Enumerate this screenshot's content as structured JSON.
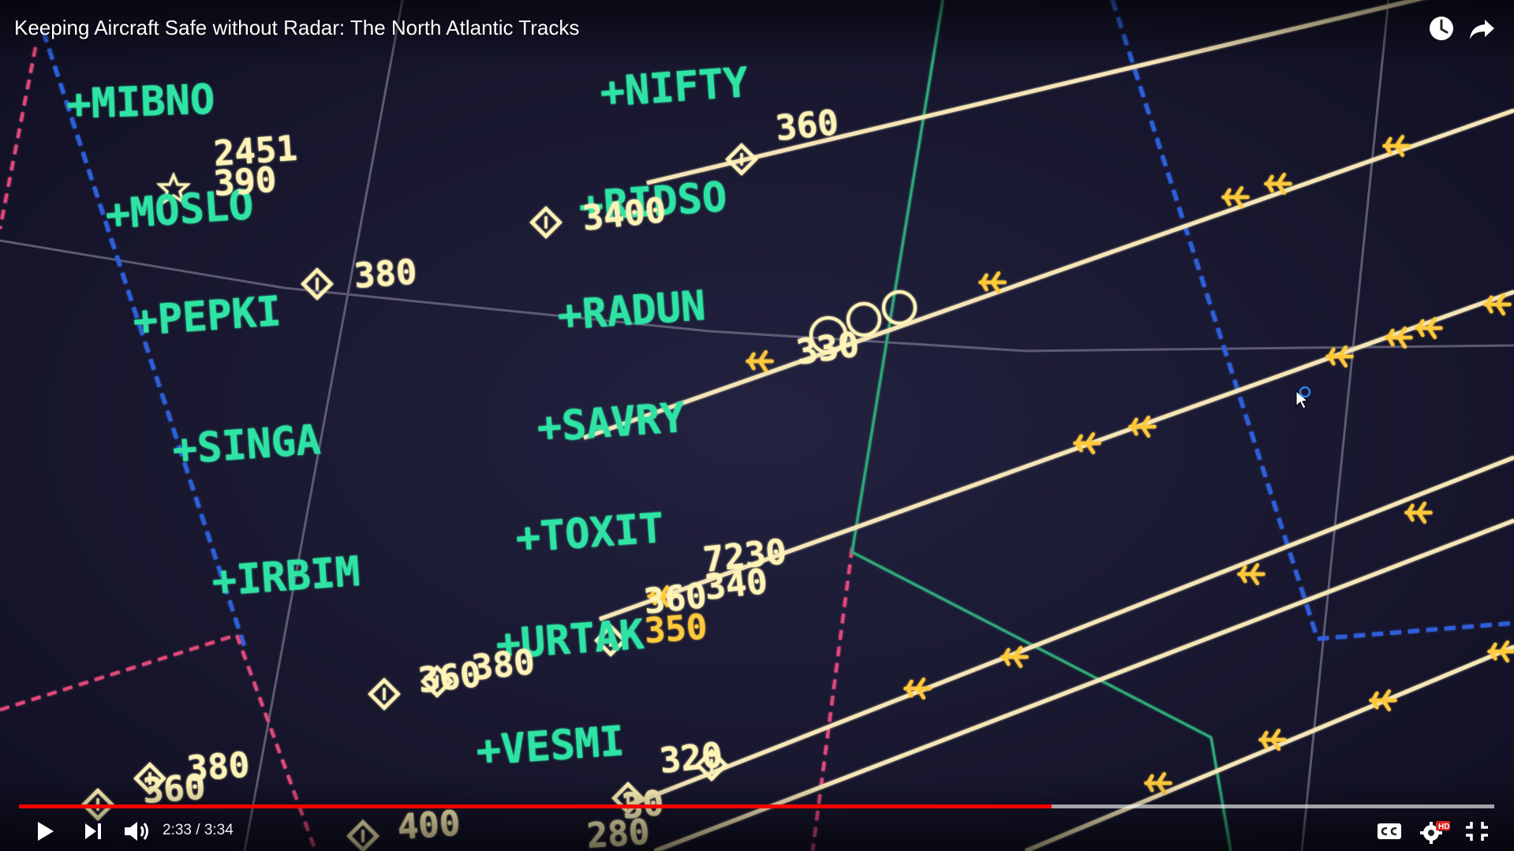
{
  "video": {
    "title": "Keeping Aircraft Safe without Radar: The North Atlantic Tracks"
  },
  "player": {
    "current_time": "2:33",
    "separator": " / ",
    "duration": "3:34",
    "played_fraction": 0.7,
    "loaded_fraction": 1.0
  },
  "top_controls": [
    "watch-later-icon",
    "share-icon"
  ],
  "bottom_controls": [
    "play-icon",
    "next-icon",
    "volume-icon",
    "captions-icon",
    "settings-hd-icon",
    "exit-fullscreen-icon"
  ],
  "colors": {
    "waypoint": "#2fe3a4",
    "aircraft": "#fff3b8",
    "aircraft_alt": "#ffc93a",
    "track_line": "#f6e6b8",
    "grid_gray": "#6e6b82",
    "boundary_blue": "#2f5fd8",
    "boundary_red": "#e04a7a",
    "progress_red": "#ff0000"
  },
  "waypoints": [
    "+MIBNO",
    "+MOSLO",
    "+PEPKI",
    "+SINGA",
    "+IRBIM",
    "+NIFTY",
    "+RIDSO",
    "+RADUN",
    "+SAVRY",
    "+TOXIT",
    "+URTAK",
    "+VESMI"
  ],
  "aircraft_labels": [
    {
      "text": "2451",
      "color": "white"
    },
    {
      "text": "390",
      "color": "white"
    },
    {
      "text": "380",
      "color": "white"
    },
    {
      "text": "360",
      "color": "white"
    },
    {
      "text": "3400",
      "color": "white"
    },
    {
      "text": "7230",
      "color": "white"
    },
    {
      "text": "340",
      "color": "white"
    },
    {
      "text": "360",
      "color": "white"
    },
    {
      "text": "350",
      "color": "yellow"
    },
    {
      "text": "360",
      "color": "white"
    },
    {
      "text": "380",
      "color": "white"
    },
    {
      "text": "330",
      "color": "white"
    },
    {
      "text": "320",
      "color": "white"
    },
    {
      "text": "380",
      "color": "white"
    },
    {
      "text": "360",
      "color": "white"
    },
    {
      "text": "400",
      "color": "white"
    },
    {
      "text": "280",
      "color": "white"
    },
    {
      "text": "30",
      "color": "white"
    }
  ]
}
